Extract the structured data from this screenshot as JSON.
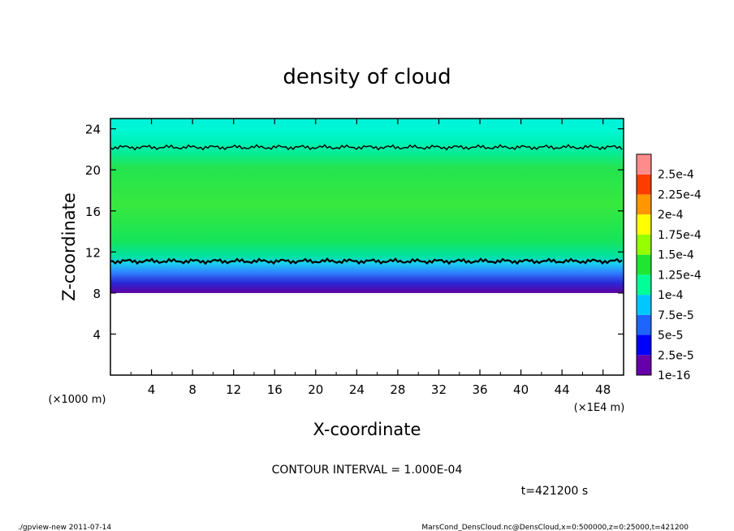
{
  "chart_data": {
    "type": "heatmap",
    "title": "density of cloud",
    "xlabel": "X-coordinate",
    "ylabel": "Z-coordinate",
    "x_unit": "(×1E4 m)",
    "y_unit": "(×1000 m)",
    "xlim": [
      0,
      50
    ],
    "ylim": [
      0,
      25
    ],
    "x_ticks": [
      "4",
      "8",
      "12",
      "16",
      "20",
      "24",
      "28",
      "32",
      "36",
      "40",
      "44",
      "48"
    ],
    "y_ticks": [
      "4",
      "8",
      "12",
      "16",
      "20",
      "24"
    ],
    "colorbar": {
      "labels": [
        "1e-16",
        "2.5e-5",
        "5e-5",
        "7.5e-5",
        "1e-4",
        "1.25e-4",
        "1.5e-4",
        "1.75e-4",
        "2e-4",
        "2.25e-4",
        "2.5e-4"
      ],
      "colors": [
        "#6600aa",
        "#0000ff",
        "#1e64ff",
        "#00c8ff",
        "#00ff96",
        "#1ee632",
        "#96ff00",
        "#ffff00",
        "#ff9600",
        "#ff3c00",
        "#ff8c8c"
      ]
    },
    "cloud_layer": {
      "z_bottom": 8,
      "z_top": 25,
      "field_fill": "#00e67a"
    },
    "contour_lines": [
      {
        "value": "1e-4",
        "z": 11.1
      },
      {
        "value": "1e-4",
        "z": 22.2
      }
    ],
    "contour_interval": "CONTOUR INTERVAL = 1.000E-04",
    "time_label": "t=421200 s"
  },
  "footer": {
    "left": "./gpview-new  2011-07-14",
    "right": "MarsCond_DensCloud.nc@DensCloud,x=0:500000,z=0:25000,t=421200"
  }
}
